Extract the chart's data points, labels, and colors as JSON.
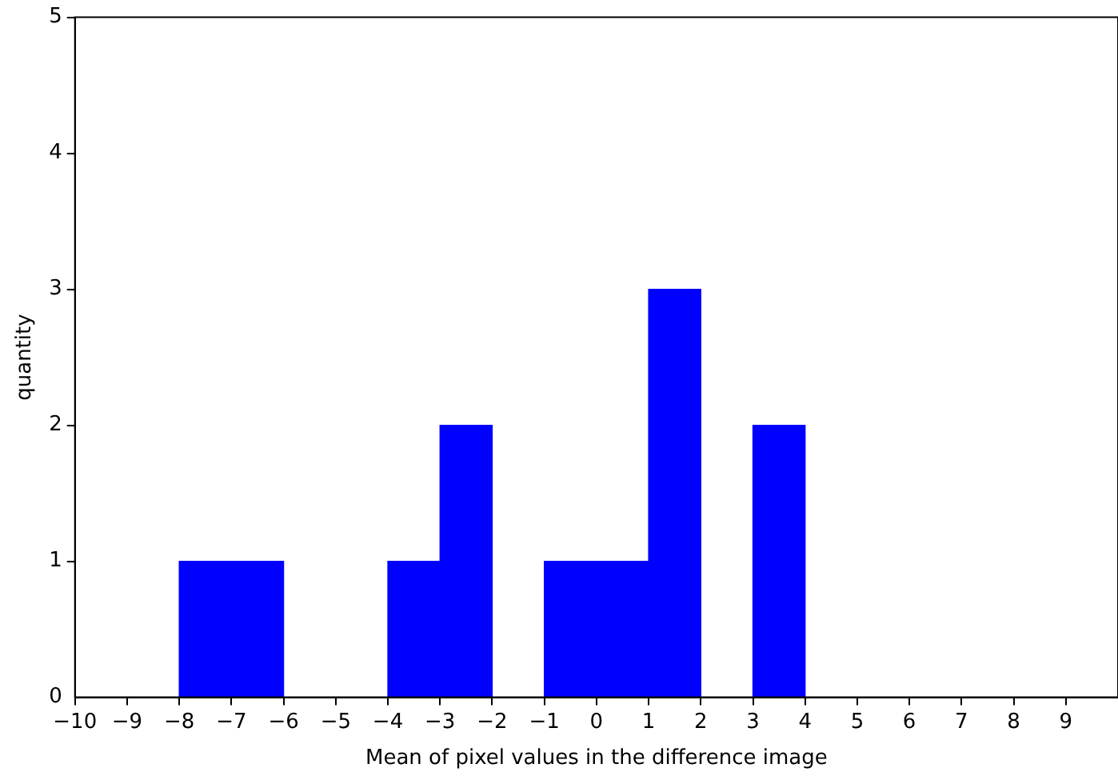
{
  "chart_data": {
    "type": "histogram",
    "xlabel": "Mean of pixel values in the difference image",
    "ylabel": "quantity",
    "bins": [
      -10,
      -9,
      -8,
      -7,
      -6,
      -5,
      -4,
      -3,
      -2,
      -1,
      0,
      1,
      2,
      3,
      4,
      5,
      6,
      7,
      8,
      9,
      10
    ],
    "values": [
      0,
      0,
      1,
      1,
      0,
      0,
      1,
      2,
      0,
      1,
      1,
      3,
      0,
      2,
      0,
      0,
      0,
      0,
      0,
      0
    ],
    "color": "#0000ff",
    "xlim": [
      -10,
      10
    ],
    "xticks": [
      -10,
      -9,
      -8,
      -7,
      -6,
      -5,
      -4,
      -3,
      -2,
      -1,
      0,
      1,
      2,
      3,
      4,
      5,
      6,
      7,
      8,
      9
    ],
    "ylim": [
      0,
      5
    ],
    "yticks": [
      0,
      1,
      2,
      3,
      4,
      5
    ],
    "grid": false,
    "legend": false
  }
}
